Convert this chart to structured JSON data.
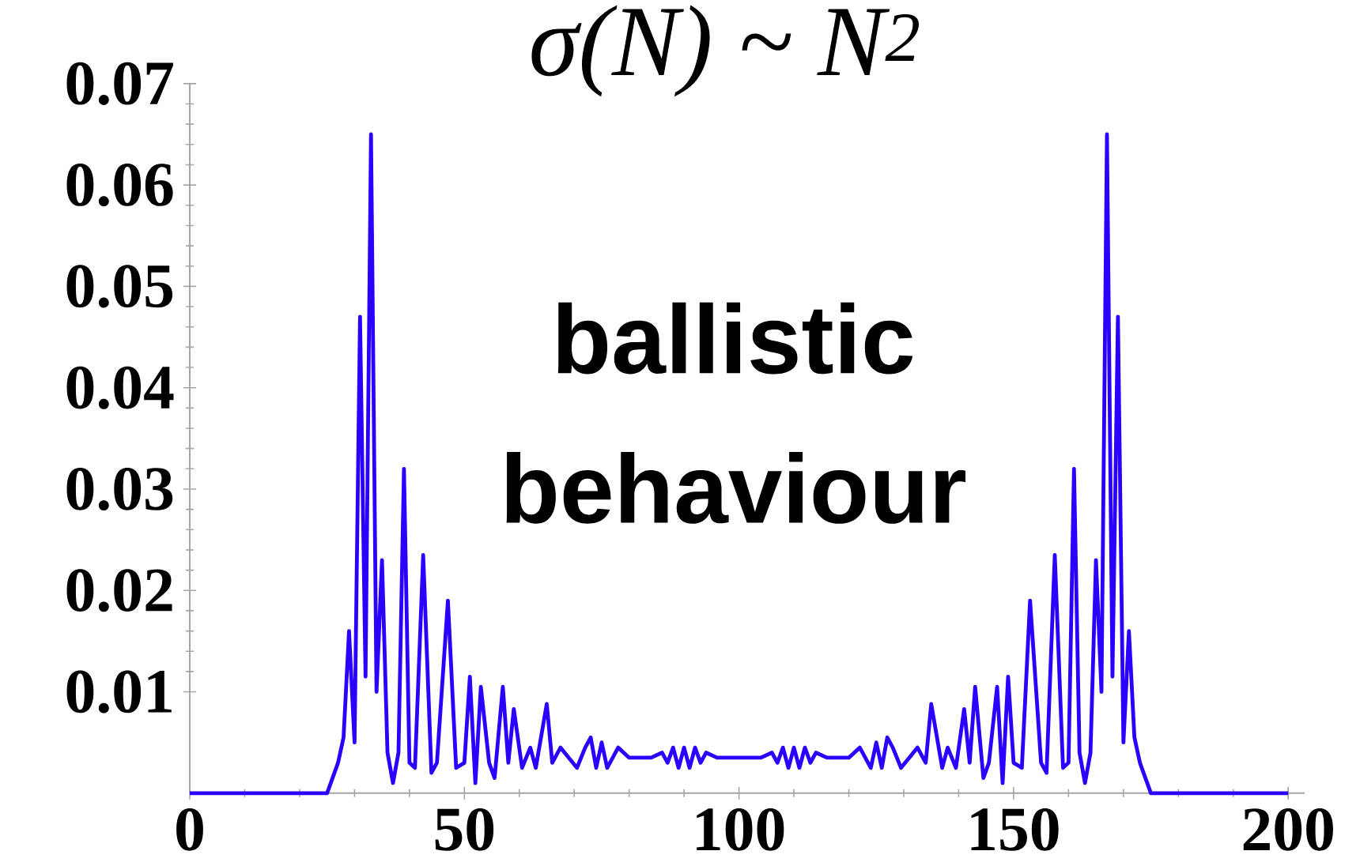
{
  "chart_data": {
    "type": "line",
    "title": "σ(N) ~ N$^{2}$",
    "annotations": [
      "ballistic behaviour"
    ],
    "color": "#2a00ff",
    "marker": "none",
    "x": [
      0,
      25,
      26,
      27,
      28,
      29,
      30,
      31,
      32,
      33,
      34,
      35,
      36,
      37,
      38,
      39,
      40,
      41,
      42.5,
      44,
      45,
      47,
      48.5,
      50,
      51,
      52,
      53,
      54.5,
      55.5,
      57,
      58,
      59,
      60.5,
      62,
      63,
      65,
      66,
      67.5,
      69,
      70.5,
      72,
      73,
      74,
      75,
      76,
      78,
      80,
      82,
      84,
      86,
      87,
      88,
      89,
      90,
      91,
      92,
      93,
      94,
      96,
      98,
      100,
      102,
      104,
      106,
      107,
      108,
      109,
      110,
      111,
      112,
      113,
      114,
      116,
      118,
      120,
      122,
      124,
      125,
      126,
      127,
      128,
      129.5,
      131,
      132.5,
      134,
      135,
      137,
      138,
      139.5,
      141,
      142,
      143,
      144.5,
      145.5,
      147,
      148,
      149,
      150,
      151.5,
      153,
      155,
      156,
      157.5,
      159,
      160,
      161,
      162,
      163,
      164,
      165,
      166,
      167,
      168,
      169,
      170,
      171,
      172,
      173,
      174,
      175,
      200
    ],
    "values": [
      0,
      0,
      0.0015,
      0.003,
      0.0055,
      0.016,
      0.005,
      0.047,
      0.0115,
      0.065,
      0.01,
      0.023,
      0.004,
      0.001,
      0.004,
      0.032,
      0.003,
      0.0025,
      0.0235,
      0.002,
      0.003,
      0.019,
      0.0025,
      0.003,
      0.0115,
      0.001,
      0.0105,
      0.003,
      0.0015,
      0.0105,
      0.003,
      0.0083,
      0.0025,
      0.0045,
      0.0025,
      0.0088,
      0.003,
      0.0045,
      0.0035,
      0.0025,
      0.0045,
      0.0055,
      0.0025,
      0.005,
      0.0025,
      0.0045,
      0.0035,
      0.0035,
      0.0035,
      0.004,
      0.003,
      0.0045,
      0.0025,
      0.0045,
      0.0025,
      0.0045,
      0.003,
      0.004,
      0.0035,
      0.0035,
      0.0035,
      0.0035,
      0.0035,
      0.004,
      0.003,
      0.0045,
      0.0025,
      0.0045,
      0.0025,
      0.0045,
      0.003,
      0.004,
      0.0035,
      0.0035,
      0.0035,
      0.0045,
      0.0025,
      0.005,
      0.0025,
      0.0055,
      0.0045,
      0.0025,
      0.0035,
      0.0045,
      0.003,
      0.0088,
      0.0025,
      0.0045,
      0.0025,
      0.0083,
      0.003,
      0.0105,
      0.0015,
      0.003,
      0.0105,
      0.001,
      0.0115,
      0.003,
      0.0025,
      0.019,
      0.003,
      0.002,
      0.0235,
      0.0025,
      0.003,
      0.032,
      0.004,
      0.001,
      0.004,
      0.023,
      0.01,
      0.065,
      0.0115,
      0.047,
      0.005,
      0.016,
      0.0055,
      0.003,
      0.0015,
      0,
      0
    ],
    "xlim": [
      0,
      203
    ],
    "ylim": [
      0,
      0.07
    ],
    "xticks": [
      0,
      50,
      100,
      150,
      200
    ],
    "yticks": [
      0.01,
      0.02,
      0.03,
      0.04,
      0.05,
      0.06,
      0.07
    ]
  }
}
